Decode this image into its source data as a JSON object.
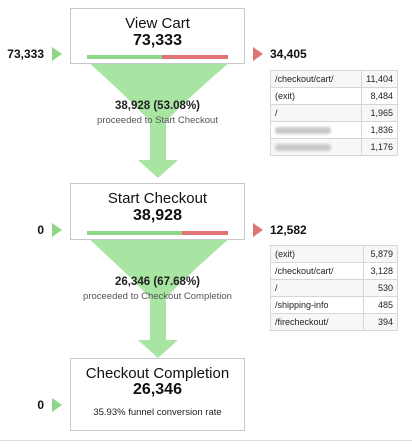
{
  "colors": {
    "green": "#8fd68a",
    "red": "#e07474"
  },
  "stages": [
    {
      "title": "View Cart",
      "value": "73,333",
      "entries": "73,333",
      "exits": "34,405",
      "continue_ratio": 0.5308
    },
    {
      "title": "Start Checkout",
      "value": "38,928",
      "entries": "0",
      "exits": "12,582",
      "continue_ratio": 0.6768
    },
    {
      "title": "Checkout Completion",
      "value": "26,346",
      "entries": "0",
      "conversion": "35.93% funnel conversion rate"
    }
  ],
  "flows": [
    {
      "main": "38,928 (53.08%)",
      "sub": "proceeded to Start Checkout"
    },
    {
      "main": "26,346 (67.68%)",
      "sub": "proceeded to Checkout Completion"
    }
  ],
  "exit_tables": [
    [
      {
        "label": "/checkout/cart/",
        "value": "11,404"
      },
      {
        "label": "(exit)",
        "value": "8,484"
      },
      {
        "label": "/",
        "value": "1,965"
      },
      {
        "label": "",
        "value": "1,836",
        "redacted": true
      },
      {
        "label": "",
        "value": "1,176",
        "redacted": true
      }
    ],
    [
      {
        "label": "(exit)",
        "value": "5,879"
      },
      {
        "label": "/checkout/cart/",
        "value": "3,128"
      },
      {
        "label": "/",
        "value": "530"
      },
      {
        "label": "/shipping-info",
        "value": "485"
      },
      {
        "label": "/firecheckout/",
        "value": "394"
      }
    ]
  ]
}
